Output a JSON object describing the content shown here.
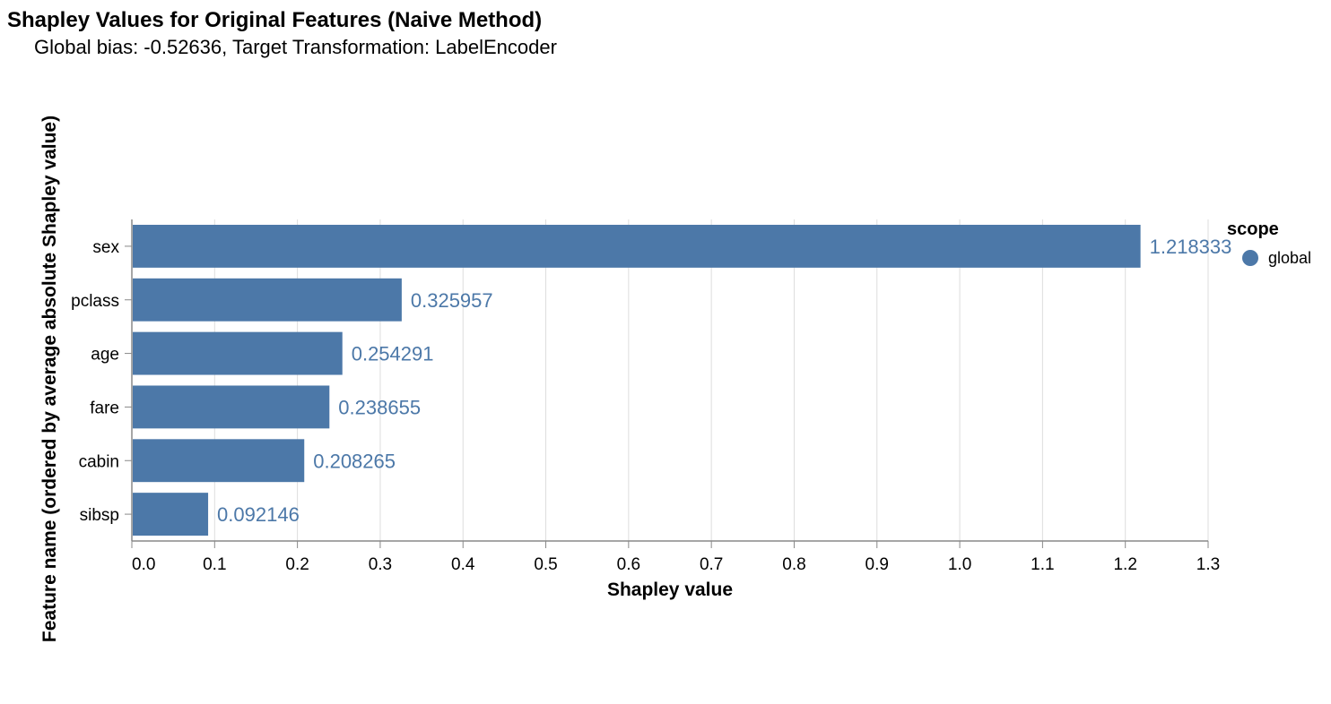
{
  "chart_data": {
    "type": "bar",
    "orientation": "horizontal",
    "title": "Shapley Values for Original Features (Naive Method)",
    "subtitle": "Global bias: -0.52636, Target Transformation: LabelEncoder",
    "xlabel": "Shapley value",
    "ylabel": "Feature name (ordered by average absolute Shapley value)",
    "categories": [
      "sex",
      "pclass",
      "age",
      "fare",
      "cabin",
      "sibsp"
    ],
    "values": [
      1.218333,
      0.325957,
      0.254291,
      0.238655,
      0.208265,
      0.092146
    ],
    "value_labels": [
      "1.218333",
      "0.325957",
      "0.254291",
      "0.238655",
      "0.208265",
      "0.092146"
    ],
    "xlim": [
      0,
      1.3
    ],
    "xticks": [
      0.0,
      0.1,
      0.2,
      0.3,
      0.4,
      0.5,
      0.6,
      0.7,
      0.8,
      0.9,
      1.0,
      1.1,
      1.2,
      1.3
    ],
    "xtick_labels": [
      "0.0",
      "0.1",
      "0.2",
      "0.3",
      "0.4",
      "0.5",
      "0.6",
      "0.7",
      "0.8",
      "0.9",
      "1.0",
      "1.1",
      "1.2",
      "1.3"
    ],
    "grid": true,
    "legend": {
      "title": "scope",
      "placement": "right",
      "entries": [
        {
          "label": "global",
          "color": "#4c78a8"
        }
      ]
    },
    "bar_color": "#4c78a8",
    "grid_color": "#dddddd",
    "axis_color": "#888888"
  }
}
